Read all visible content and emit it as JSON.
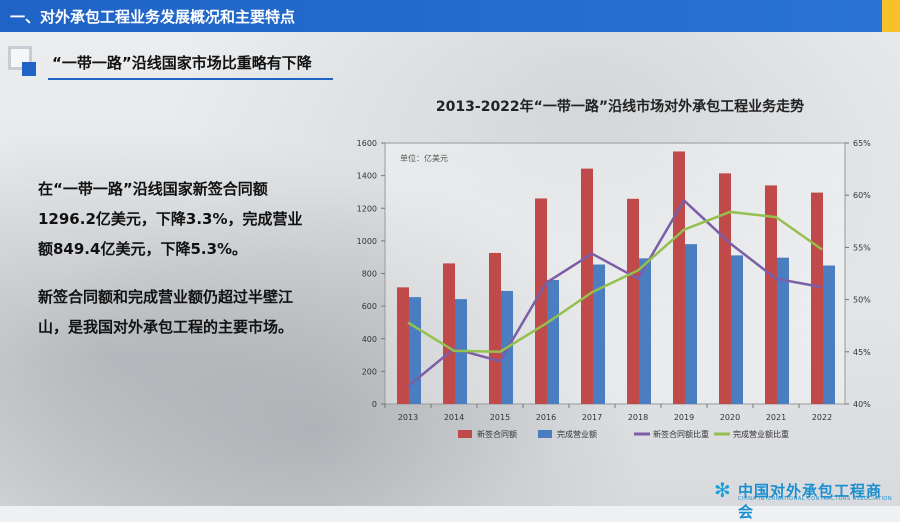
{
  "header": {
    "title": "一、对外承包工程业务发展概况和主要特点"
  },
  "section": {
    "subtitle": "“一带一路”沿线国家市场比重略有下降"
  },
  "body": {
    "paragraph1": "在“一带一路”沿线国家新签合同额1296.2亿美元，下降3.3%，完成营业额849.4亿美元，下降5.3%。",
    "paragraph2": "新签合同额和完成营业额仍超过半壁江山，是我国对外承包工程的主要市场。"
  },
  "logo": {
    "name": "中国对外承包工程商会",
    "sub": "CHINA INTERNATIONAL CONTRACTORS ASSOCIATION"
  },
  "colors": {
    "brand_blue": "#1f63c6",
    "bar_red": "#c0494a",
    "bar_blue": "#4a7ec0",
    "line_purple": "#7b5ea6",
    "line_green": "#93c04e",
    "gold": "#f6c12a"
  },
  "chart_data": {
    "type": "bar",
    "title": "2013-2022年“一带一路”沿线市场对外承包工程业务走势",
    "unit_label": "单位：亿美元",
    "categories": [
      "2013",
      "2014",
      "2015",
      "2016",
      "2017",
      "2018",
      "2019",
      "2020",
      "2021",
      "2022"
    ],
    "ylim": [
      0,
      1600
    ],
    "yticks": [
      0,
      200,
      400,
      600,
      800,
      1000,
      1200,
      1400,
      1600
    ],
    "y2lim": [
      40,
      65
    ],
    "y2ticks": [
      "40%",
      "45%",
      "50%",
      "55%",
      "60%",
      "65%"
    ],
    "series": [
      {
        "name": "新签合同额",
        "type": "bar",
        "axis": "left",
        "color": "#c0494a",
        "values": [
          715,
          862,
          926,
          1260,
          1443,
          1258,
          1548,
          1414,
          1340,
          1296
        ]
      },
      {
        "name": "完成营业额",
        "type": "bar",
        "axis": "left",
        "color": "#4a7ec0",
        "values": [
          655,
          643,
          693,
          760,
          855,
          893,
          980,
          911,
          897,
          849
        ]
      },
      {
        "name": "新签合同额比重",
        "type": "line",
        "axis": "right",
        "color": "#7b5ea6",
        "values": [
          41.7,
          45.3,
          44.1,
          51.6,
          54.4,
          52.0,
          59.5,
          55.4,
          52.0,
          51.2
        ]
      },
      {
        "name": "完成营业额比重",
        "type": "line",
        "axis": "right",
        "color": "#93c04e",
        "values": [
          47.8,
          45.1,
          45.0,
          47.7,
          50.7,
          52.8,
          56.7,
          58.4,
          57.9,
          54.8
        ]
      }
    ],
    "grid": false,
    "legend": "bottom"
  }
}
